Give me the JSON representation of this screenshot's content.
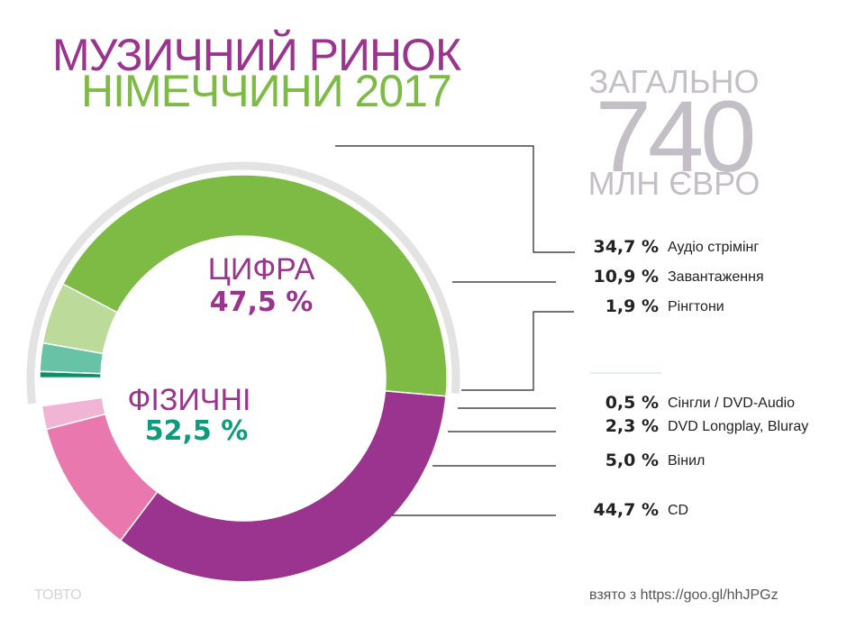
{
  "title": {
    "line1": "МУЗИЧНИЙ РИНОК",
    "line2": "НІМЕЧЧИНИ  2017"
  },
  "total": {
    "label": "ЗАГАЛЬНО",
    "value": "740",
    "unit": "МЛН ЄВРО"
  },
  "groups": [
    {
      "name": "ЦИФРА",
      "value_label": "47,5 %",
      "value": 47.5,
      "name_color": "#9b348e",
      "value_color": "#9b348e"
    },
    {
      "name": "ФІЗИЧНІ",
      "value_label": "52,5 %",
      "value": 52.5,
      "name_color": "#9b348e",
      "value_color": "#0e9a7c"
    }
  ],
  "chart_data": {
    "type": "pie",
    "variant": "donut",
    "total": "740 МЛН ЄВРО",
    "unit": "%",
    "slices": [
      {
        "label": "Аудіо стрімінг",
        "value_label": "34,7 %",
        "value": 34.7,
        "group": "ЦИФРА",
        "color": "#9b348e"
      },
      {
        "label": "Завантаження",
        "value_label": "10,9 %",
        "value": 10.9,
        "group": "ЦИФРА",
        "color": "#e878ad"
      },
      {
        "label": "Рінгтони",
        "value_label": "1,9 %",
        "value": 1.9,
        "group": "ЦИФРА",
        "color": "#f2b4d5"
      },
      {
        "label": "Сінгли / DVD-Audio",
        "value_label": "0,5 %",
        "value": 0.5,
        "group": "ФІЗИЧНІ",
        "color": "#0b8e62"
      },
      {
        "label": "DVD Longplay, Bluray",
        "value_label": "2,3 %",
        "value": 2.3,
        "group": "ФІЗИЧНІ",
        "color": "#68c3a6"
      },
      {
        "label": "Вінил",
        "value_label": "5,0 %",
        "value": 5.0,
        "group": "ФІЗИЧНІ",
        "color": "#bcdb9a"
      },
      {
        "label": "CD",
        "value_label": "44,7 %",
        "value": 44.7,
        "group": "ФІЗИЧНІ",
        "color": "#7dbb44"
      }
    ]
  },
  "footer": {
    "left": "ТОВТО",
    "right": "взято з https://goo.gl/hhJPGz"
  }
}
